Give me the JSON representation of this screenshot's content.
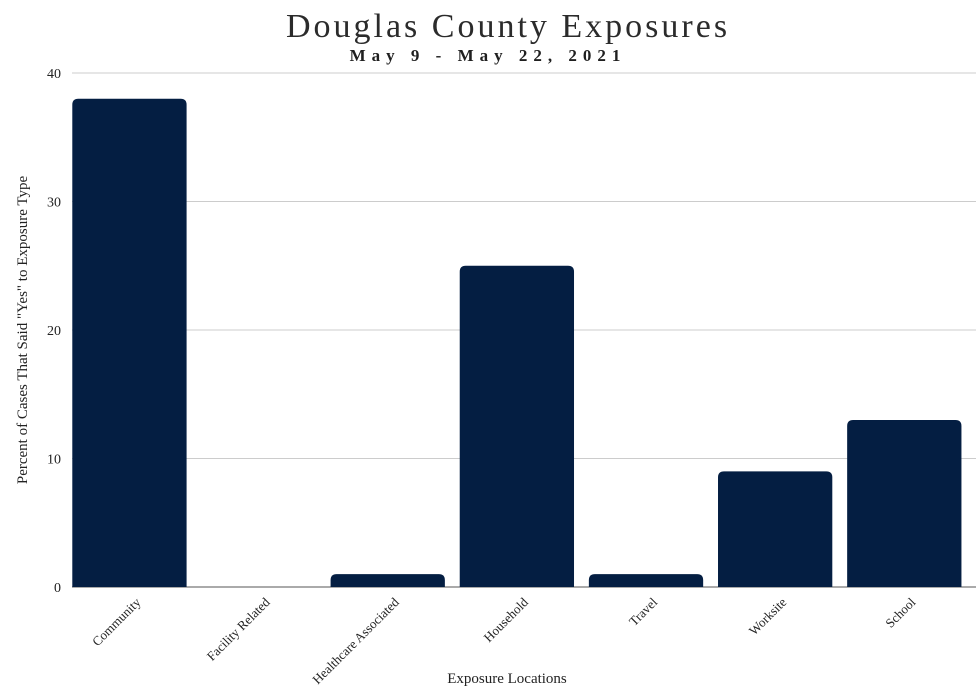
{
  "chart_data": {
    "type": "bar",
    "title": "Douglas County Exposures",
    "subtitle": "May 9 - May 22, 2021",
    "xlabel": "Exposure Locations",
    "ylabel": "Percent of Cases That Said \"Yes\" to Exposure Type",
    "categories": [
      "Community",
      "Facility Related",
      "Healthcare Associated",
      "Household",
      "Travel",
      "Worksite",
      "School"
    ],
    "values": [
      38,
      0,
      1,
      25,
      1,
      9,
      13
    ],
    "ylim": [
      0,
      40
    ],
    "yticks": [
      "0",
      "10",
      "20",
      "30",
      "40"
    ],
    "grid": true,
    "legend": "none",
    "bar_color": "#041e42"
  }
}
